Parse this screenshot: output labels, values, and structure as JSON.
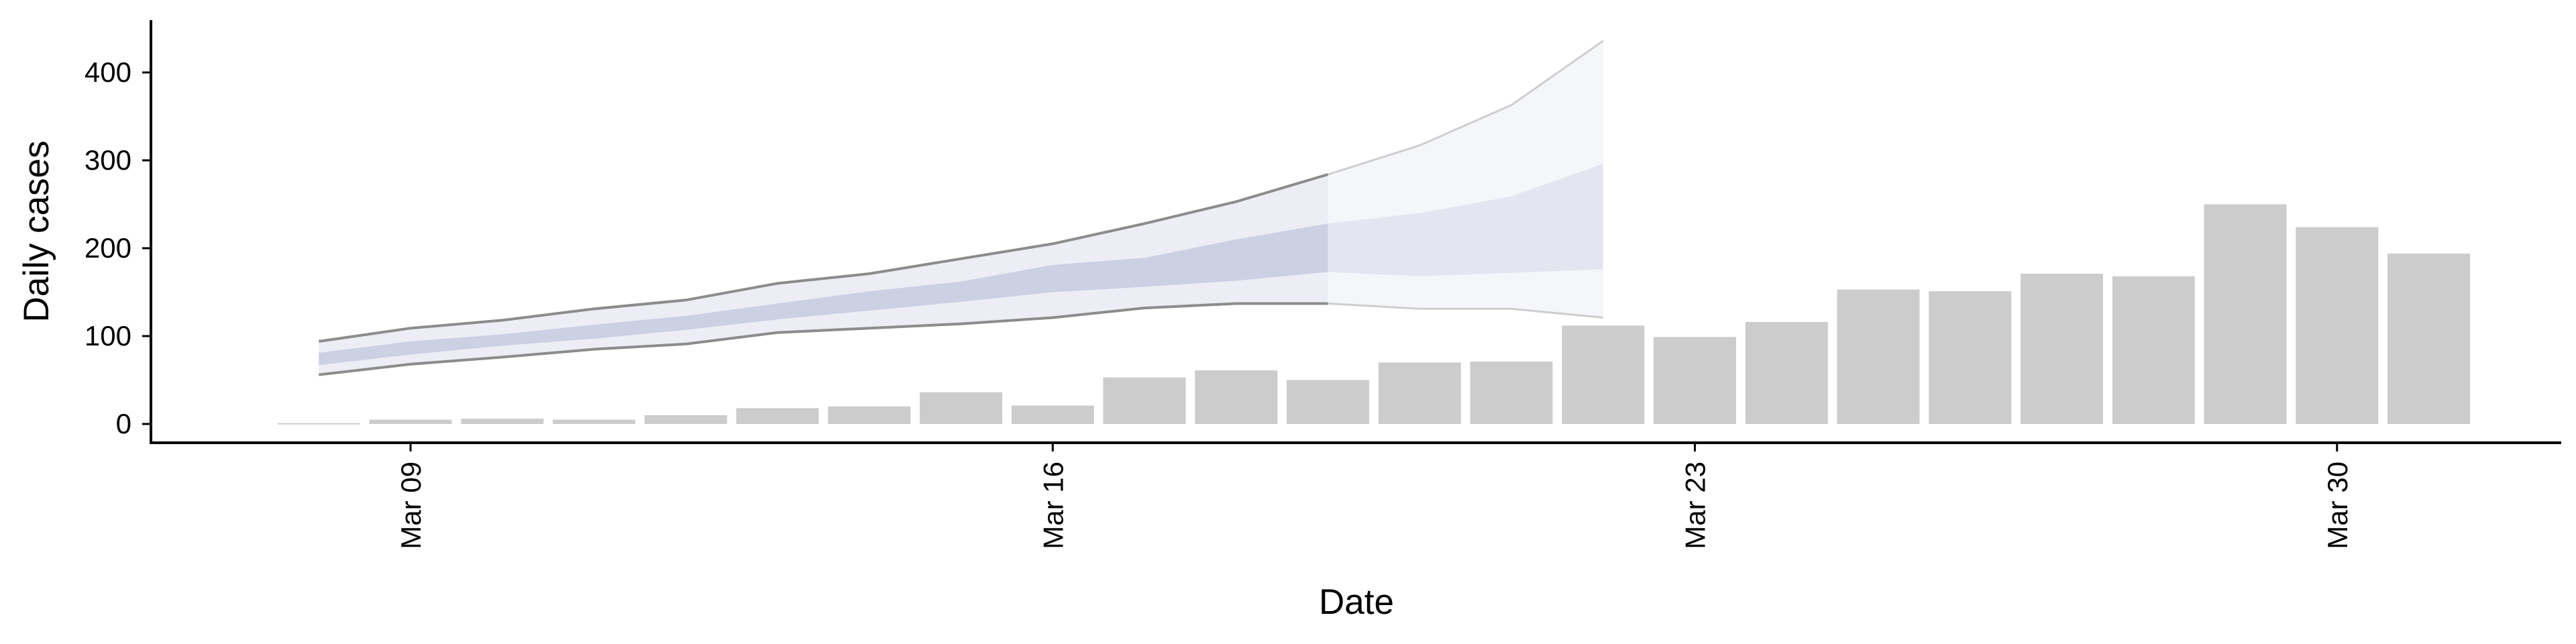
{
  "chart_data": {
    "type": "bar",
    "xlabel": "Date",
    "ylabel": "Daily cases",
    "ylim": [
      -20,
      460
    ],
    "yticks": [
      0,
      100,
      200,
      300,
      400
    ],
    "xticks": [
      {
        "date": "2020-03-09",
        "label": "Mar 09"
      },
      {
        "date": "2020-03-16",
        "label": "Mar 16"
      },
      {
        "date": "2020-03-23",
        "label": "Mar 23"
      },
      {
        "date": "2020-03-30",
        "label": "Mar 30"
      }
    ],
    "xlim": [
      "2020-03-06",
      "2020-04-02"
    ],
    "grid": false,
    "bars": {
      "color": "#cccccc",
      "dates": [
        "2020-03-08",
        "2020-03-09",
        "2020-03-10",
        "2020-03-11",
        "2020-03-12",
        "2020-03-13",
        "2020-03-14",
        "2020-03-15",
        "2020-03-16",
        "2020-03-17",
        "2020-03-18",
        "2020-03-19",
        "2020-03-20",
        "2020-03-21",
        "2020-03-22",
        "2020-03-23",
        "2020-03-24",
        "2020-03-25",
        "2020-03-26",
        "2020-03-27",
        "2020-03-28",
        "2020-03-29",
        "2020-03-30",
        "2020-03-31"
      ],
      "values": [
        1,
        5,
        6,
        5,
        10,
        18,
        20,
        36,
        21,
        53,
        61,
        50,
        70,
        71,
        112,
        99,
        116,
        153,
        151,
        171,
        168,
        250,
        224,
        194
      ]
    },
    "forecast": {
      "dates": [
        "2020-03-08",
        "2020-03-09",
        "2020-03-10",
        "2020-03-11",
        "2020-03-12",
        "2020-03-13",
        "2020-03-14",
        "2020-03-15",
        "2020-03-16",
        "2020-03-17",
        "2020-03-18",
        "2020-03-19",
        "2020-03-20",
        "2020-03-21",
        "2020-03-22"
      ],
      "outer_lower": [
        56,
        68,
        76,
        85,
        91,
        104,
        109,
        114,
        121,
        132,
        137,
        137,
        131,
        131,
        121
      ],
      "outer_upper": [
        94,
        109,
        118,
        131,
        141,
        160,
        171,
        188,
        205,
        228,
        253,
        284,
        317,
        363,
        436
      ],
      "inner_lower": [
        67,
        79,
        89,
        97,
        107,
        119,
        129,
        139,
        150,
        156,
        163,
        173,
        168,
        172,
        176
      ],
      "inner_upper": [
        81,
        94,
        102,
        113,
        123,
        137,
        151,
        162,
        181,
        189,
        210,
        228,
        240,
        259,
        296
      ],
      "observed_end": "2020-03-19",
      "colors": {
        "outer_fill": "#dfe1ef",
        "inner_fill": "#c3c8de",
        "line": "#8c8c8c"
      }
    }
  }
}
